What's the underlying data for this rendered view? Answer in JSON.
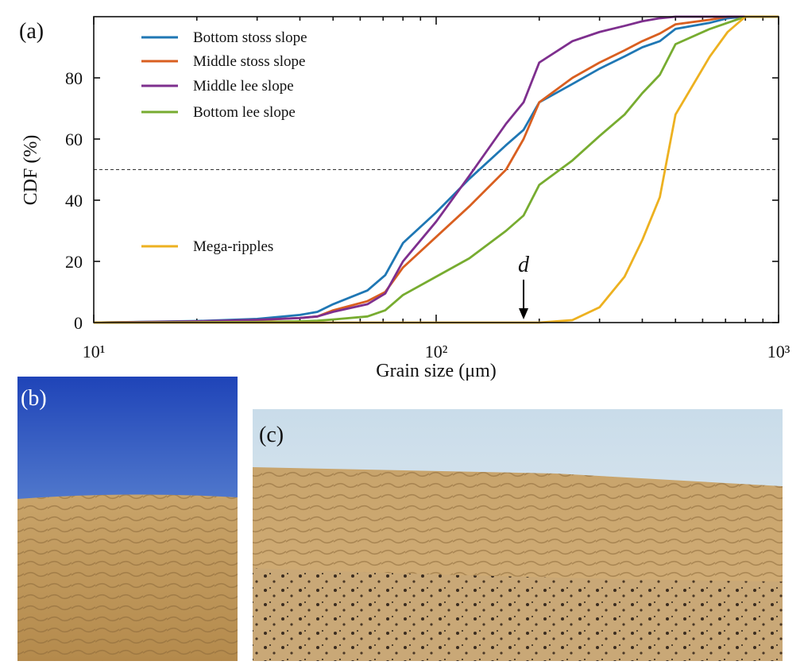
{
  "chart_data": {
    "type": "line",
    "x_label": "Grain size (μm)",
    "y_label": "CDF (%)",
    "panel_labels": [
      "(a)",
      "(b)",
      "(c)"
    ],
    "x": [
      10,
      20,
      30,
      40,
      45,
      50,
      63,
      71,
      80,
      100,
      125,
      160,
      180,
      200,
      250,
      300,
      355,
      400,
      450,
      500,
      630,
      710,
      800,
      1000
    ],
    "series": [
      {
        "name": "Bottom stoss slope",
        "color": "#1f77b4",
        "values": [
          0,
          0.5,
          1.2,
          2.5,
          3.5,
          6,
          10.5,
          15.5,
          26,
          36,
          47,
          58,
          63,
          72,
          78,
          83,
          87,
          90,
          92,
          96,
          98,
          99.5,
          100,
          100
        ]
      },
      {
        "name": "Middle stoss slope",
        "color": "#d95f20",
        "values": [
          0,
          0.3,
          0.8,
          1.5,
          2,
          4,
          7,
          10,
          18,
          28,
          38,
          50,
          60,
          72,
          80,
          85,
          89,
          92,
          94.5,
          97.5,
          99,
          100,
          100,
          100
        ]
      },
      {
        "name": "Middle lee slope",
        "color": "#7e2f8e",
        "values": [
          0,
          0.4,
          0.9,
          1.5,
          2,
          3.5,
          6,
          9.5,
          20,
          33,
          48,
          65,
          72,
          85,
          92,
          95,
          97,
          98.5,
          99.5,
          100,
          100,
          100,
          100,
          100
        ]
      },
      {
        "name": "Bottom lee slope",
        "color": "#77ac30",
        "values": [
          0,
          0.1,
          0.2,
          0.4,
          0.6,
          1,
          2,
          4,
          9,
          15,
          21,
          30,
          35,
          45,
          53,
          61,
          68,
          75,
          81,
          91,
          96,
          98,
          100,
          100
        ]
      },
      {
        "name": "Mega-ripples",
        "color": "#edb120",
        "values": [
          0,
          0,
          0,
          0,
          0,
          0,
          0,
          0,
          0,
          0,
          0,
          0,
          0,
          0,
          0.8,
          5,
          15,
          27,
          41,
          68,
          87,
          95,
          100,
          100
        ]
      }
    ],
    "xlim": [
      10,
      1000
    ],
    "ylim": [
      0,
      100
    ],
    "log_x": true,
    "xticks": [
      {
        "value": 10,
        "label": "10¹"
      },
      {
        "value": 100,
        "label": "10²"
      },
      {
        "value": 1000,
        "label": "10³"
      }
    ],
    "yticks": [
      0,
      20,
      40,
      60,
      80
    ],
    "hline": 50,
    "annotation": {
      "text": "d",
      "x": 180
    }
  }
}
